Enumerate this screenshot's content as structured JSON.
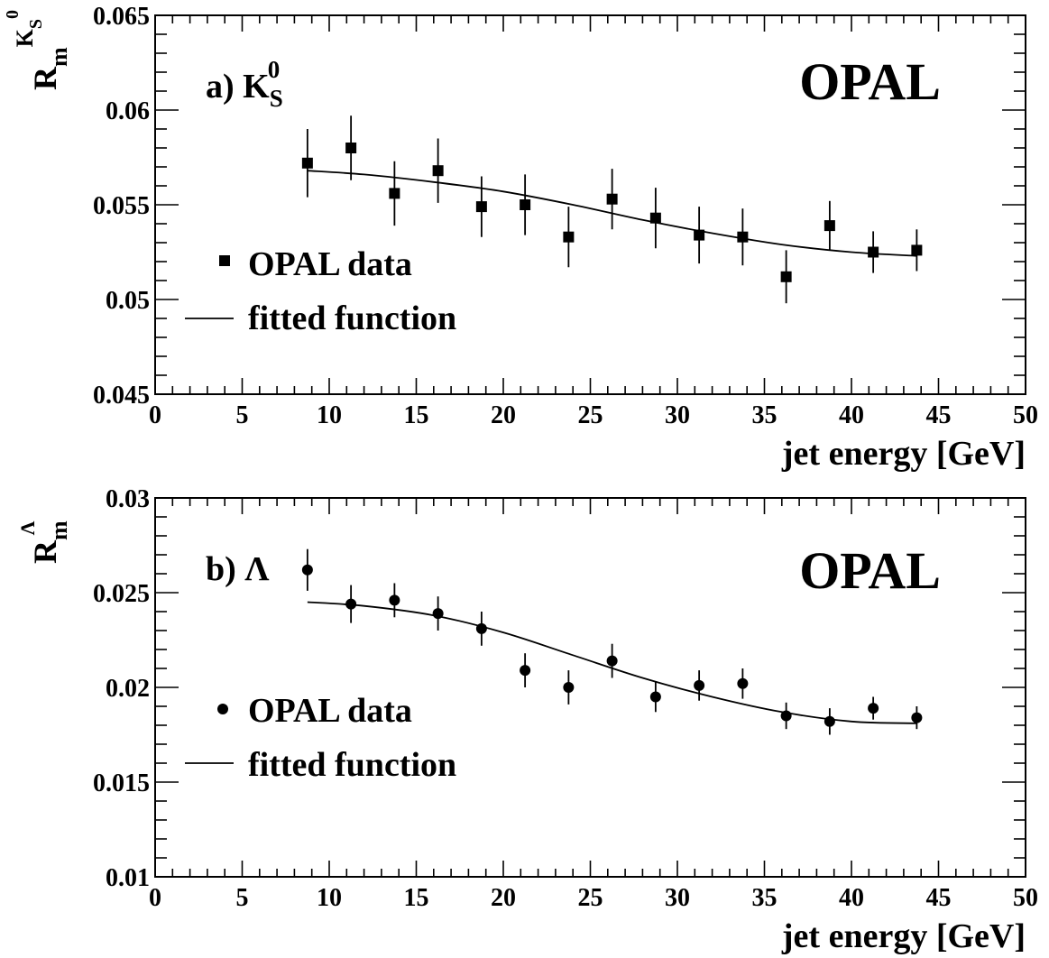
{
  "chart_data": [
    {
      "type": "scatter",
      "panel_label": "a) K",
      "panel_label_sub": "S",
      "panel_label_sup": "0",
      "experiment": "OPAL",
      "ylabel": "R",
      "ylabel_sub": "m",
      "ylabel_sup": "K",
      "ylabel_sup_sub": "S",
      "ylabel_sup_sup": "0",
      "xlabel": "jet energy [GeV]",
      "xlim": [
        0,
        50
      ],
      "ylim": [
        0.045,
        0.065
      ],
      "xticks": [
        "0",
        "5",
        "10",
        "15",
        "20",
        "25",
        "30",
        "35",
        "40",
        "45",
        "50"
      ],
      "yticks": [
        "0.045",
        "0.05",
        "0.055",
        "0.06",
        "0.065"
      ],
      "ytick_values": [
        0.045,
        0.05,
        0.055,
        0.06,
        0.065
      ],
      "marker": "square",
      "legend": [
        "OPAL data",
        "fitted function"
      ],
      "series": [
        {
          "name": "OPAL data",
          "x": [
            8.75,
            11.25,
            13.75,
            16.25,
            18.75,
            21.25,
            23.75,
            26.25,
            28.75,
            31.25,
            33.75,
            36.25,
            38.75,
            41.25,
            43.75
          ],
          "y": [
            0.0572,
            0.058,
            0.0556,
            0.0568,
            0.0549,
            0.055,
            0.0533,
            0.0553,
            0.0543,
            0.0534,
            0.0533,
            0.0512,
            0.0539,
            0.0525,
            0.0526
          ],
          "err": [
            0.0018,
            0.0017,
            0.0017,
            0.0017,
            0.0016,
            0.0016,
            0.0016,
            0.0016,
            0.0016,
            0.0015,
            0.0015,
            0.0014,
            0.0013,
            0.0011,
            0.0011
          ]
        },
        {
          "name": "fitted function",
          "x": [
            8.75,
            12,
            16,
            20,
            24,
            28,
            32,
            36,
            40,
            43.75
          ],
          "y": [
            0.0568,
            0.0566,
            0.0562,
            0.0557,
            0.055,
            0.0542,
            0.0535,
            0.0529,
            0.0525,
            0.0523
          ]
        }
      ]
    },
    {
      "type": "scatter",
      "panel_label": "b) Λ",
      "experiment": "OPAL",
      "ylabel": "R",
      "ylabel_sub": "m",
      "ylabel_sup": "Λ",
      "xlabel": "jet energy [GeV]",
      "xlim": [
        0,
        50
      ],
      "ylim": [
        0.01,
        0.03
      ],
      "xticks": [
        "0",
        "5",
        "10",
        "15",
        "20",
        "25",
        "30",
        "35",
        "40",
        "45",
        "50"
      ],
      "yticks": [
        "0.01",
        "0.015",
        "0.02",
        "0.025",
        "0.03"
      ],
      "ytick_values": [
        0.01,
        0.015,
        0.02,
        0.025,
        0.03
      ],
      "marker": "circle",
      "legend": [
        "OPAL data",
        "fitted function"
      ],
      "series": [
        {
          "name": "OPAL data",
          "x": [
            8.75,
            11.25,
            13.75,
            16.25,
            18.75,
            21.25,
            23.75,
            26.25,
            28.75,
            31.25,
            33.75,
            36.25,
            38.75,
            41.25,
            43.75
          ],
          "y": [
            0.0262,
            0.0244,
            0.0246,
            0.0239,
            0.0231,
            0.0209,
            0.02,
            0.0214,
            0.0195,
            0.0201,
            0.0202,
            0.0185,
            0.0182,
            0.0189,
            0.0184
          ],
          "err": [
            0.0011,
            0.001,
            0.0009,
            0.0009,
            0.0009,
            0.0009,
            0.0009,
            0.0009,
            0.0008,
            0.0008,
            0.0008,
            0.0007,
            0.0007,
            0.0006,
            0.0006
          ]
        },
        {
          "name": "fitted function",
          "x": [
            8.75,
            12,
            16,
            20,
            24,
            28,
            32,
            36,
            40,
            43.75
          ],
          "y": [
            0.0245,
            0.0243,
            0.0238,
            0.0229,
            0.0217,
            0.0205,
            0.0195,
            0.0187,
            0.0182,
            0.0181
          ]
        }
      ]
    }
  ]
}
